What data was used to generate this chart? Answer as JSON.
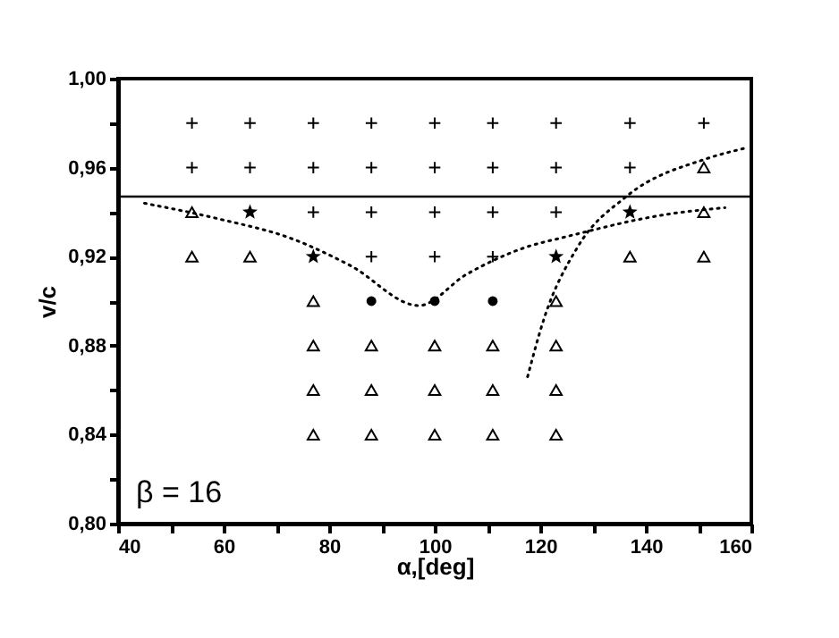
{
  "chart_data": {
    "type": "scatter",
    "xlabel": "α,[deg]",
    "ylabel": "v/c",
    "xlim": [
      40,
      160
    ],
    "xticks": [
      40,
      {
        "value": 50,
        "label": null
      },
      60,
      {
        "value": 70,
        "label": null
      },
      80,
      {
        "value": 90,
        "label": null
      },
      100,
      {
        "value": 110,
        "label": null
      },
      120,
      {
        "value": 130,
        "label": null
      },
      140,
      {
        "value": 150,
        "label": null
      },
      160
    ],
    "ylim": [
      0.8,
      1.0
    ],
    "yticks": [
      {
        "value": 0.8,
        "label": "0,80"
      },
      {
        "value": 0.82,
        "label": null
      },
      {
        "value": 0.84,
        "label": "0,84"
      },
      {
        "value": 0.86,
        "label": null
      },
      {
        "value": 0.88,
        "label": "0,88"
      },
      {
        "value": 0.9,
        "label": null
      },
      {
        "value": 0.92,
        "label": "0,92"
      },
      {
        "value": 0.94,
        "label": null
      },
      {
        "value": 0.96,
        "label": "0,96"
      },
      {
        "value": 0.98,
        "label": null
      },
      {
        "value": 1.0,
        "label": "1,00"
      }
    ],
    "grid": false,
    "series": [
      {
        "marker": "cross",
        "color": "#000000",
        "x": [
          54,
          65,
          77,
          88,
          100,
          111,
          123,
          137,
          151,
          54,
          65,
          77,
          88,
          100,
          111,
          123,
          137,
          77,
          88,
          100,
          111,
          123,
          88,
          100,
          111
        ],
        "values": [
          0.98,
          0.98,
          0.98,
          0.98,
          0.98,
          0.98,
          0.98,
          0.98,
          0.98,
          0.96,
          0.96,
          0.96,
          0.96,
          0.96,
          0.96,
          0.96,
          0.96,
          0.94,
          0.94,
          0.94,
          0.94,
          0.94,
          0.92,
          0.92,
          0.92
        ]
      },
      {
        "marker": "triangle",
        "color": "#000000",
        "x": [
          151,
          54,
          151,
          54,
          65,
          137,
          151,
          77,
          123,
          77,
          88,
          100,
          111,
          123,
          77,
          88,
          100,
          111,
          123,
          77,
          88,
          100,
          111,
          123
        ],
        "values": [
          0.96,
          0.94,
          0.94,
          0.92,
          0.92,
          0.92,
          0.92,
          0.9,
          0.9,
          0.88,
          0.88,
          0.88,
          0.88,
          0.88,
          0.86,
          0.86,
          0.86,
          0.86,
          0.86,
          0.84,
          0.84,
          0.84,
          0.84,
          0.84
        ]
      },
      {
        "marker": "star",
        "color": "#000000",
        "x": [
          65,
          137,
          77,
          123
        ],
        "values": [
          0.94,
          0.94,
          0.92,
          0.92
        ]
      },
      {
        "marker": "circle",
        "color": "#000000",
        "x": [
          88,
          100,
          111
        ],
        "values": [
          0.9,
          0.9,
          0.9
        ]
      },
      {
        "type": "line",
        "marker": "none",
        "line_style": "dotted",
        "color": "#000000",
        "x": [
          45,
          59,
          73,
          84,
          97,
          106,
          117,
          125,
          144,
          155
        ],
        "values": [
          0.944,
          0.937,
          0.928,
          0.916,
          0.898,
          0.912,
          0.924,
          0.929,
          0.939,
          0.942
        ]
      },
      {
        "type": "line",
        "marker": "none",
        "line_style": "dotted",
        "color": "#000000",
        "x": [
          117.6,
          120.7,
          127,
          136.3,
          151.5,
          159.3
        ],
        "values": [
          0.866,
          0.892,
          0.924,
          0.947,
          0.964,
          0.969
        ]
      }
    ],
    "ref_lines": [
      {
        "axis": "y",
        "value": 0.947,
        "color": "#000000",
        "line_style": "solid"
      }
    ],
    "annotations": [
      "β = 16"
    ]
  }
}
